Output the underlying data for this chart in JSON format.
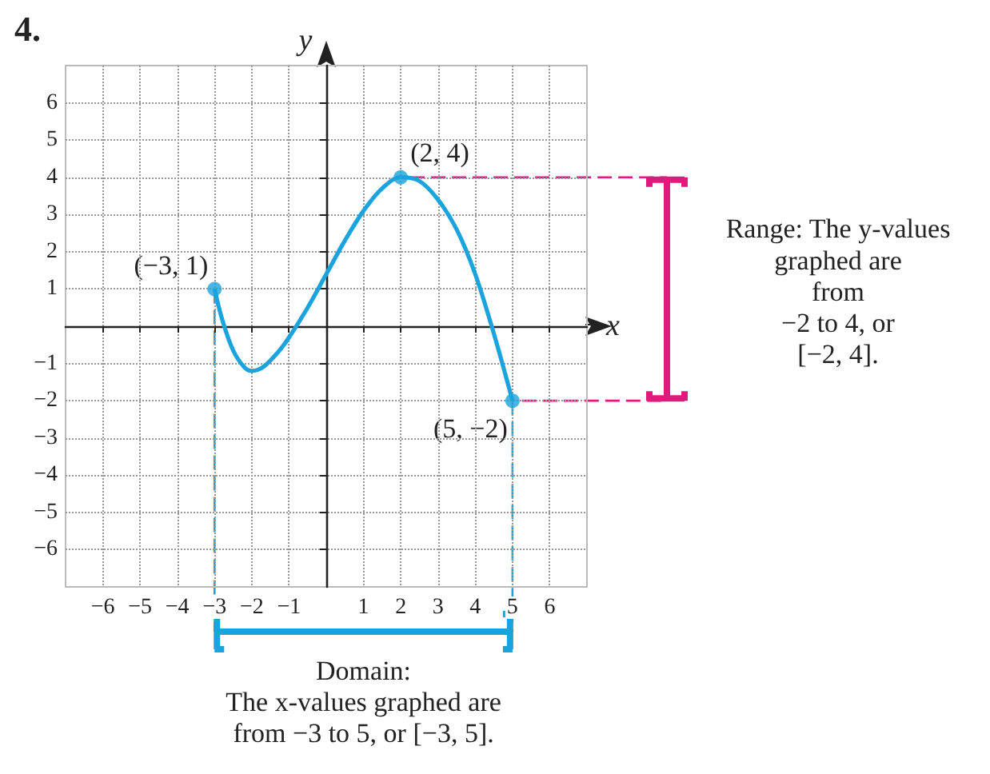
{
  "chart_data": {
    "type": "line",
    "title": "4.",
    "xlabel": "x",
    "ylabel": "y",
    "xlim": [
      -7,
      7
    ],
    "ylim": [
      -7,
      7
    ],
    "xticks": [
      {
        "value": -6,
        "label": "−6"
      },
      {
        "value": -5,
        "label": "−5"
      },
      {
        "value": -4,
        "label": "−4"
      },
      {
        "value": -3,
        "label": "−3"
      },
      {
        "value": -2,
        "label": "−2"
      },
      {
        "value": -1,
        "label": "−1"
      },
      1,
      2,
      3,
      4,
      5,
      6
    ],
    "yticks": [
      {
        "value": -6,
        "label": "−6"
      },
      {
        "value": -5,
        "label": "−5"
      },
      {
        "value": -4,
        "label": "−4"
      },
      {
        "value": -3,
        "label": "−3"
      },
      {
        "value": -2,
        "label": "−2"
      },
      {
        "value": -1,
        "label": "−1"
      },
      1,
      2,
      3,
      4,
      5,
      6
    ],
    "grid": true,
    "series": [
      {
        "marker": "none",
        "color": "#1aa3dc",
        "x": [
          -3,
          -2.8,
          -2.5,
          -2.2,
          -2,
          -1.7,
          -1.3,
          -1,
          -0.5,
          0,
          0.5,
          1,
          1.5,
          2,
          2.5,
          3,
          3.5,
          4,
          4.5,
          5
        ],
        "values": [
          1,
          0.2,
          -0.65,
          -1.1,
          -1.2,
          -1.1,
          -0.7,
          -0.3,
          0.5,
          1.4,
          2.3,
          3.1,
          3.7,
          4,
          3.9,
          3.4,
          2.6,
          1.4,
          -0.2,
          -2
        ]
      },
      {
        "type": "scatter",
        "marker": "circle",
        "color": "#1aa3dc",
        "x": [
          -3,
          2,
          5
        ],
        "values": [
          1,
          4,
          -2
        ]
      }
    ],
    "ref_lines": [
      {
        "axis": "x",
        "value": -3,
        "color": "#1aa3dc",
        "line_style": "dashed"
      },
      {
        "axis": "x",
        "value": 5,
        "color": "#1aa3dc",
        "line_style": "dashed"
      },
      {
        "axis": "y",
        "value": 4,
        "color": "#e0197d",
        "line_style": "dashed"
      },
      {
        "axis": "y",
        "value": -2,
        "color": "#e0197d",
        "line_style": "dashed"
      }
    ],
    "annotations": [
      {
        "text": "(−3, 1)",
        "x": -3,
        "y": 1
      },
      {
        "text": "(2, 4)",
        "x": 2,
        "y": 4
      },
      {
        "text": "(5, −2)",
        "x": 5,
        "y": -2
      },
      "Range: The y-values\ngraphed are\nfrom\n−2 to 4, or\n[−2, 4].",
      "Domain:\nThe x-values graphed are\nfrom −3 to 5, or [−3, 5]."
    ]
  }
}
